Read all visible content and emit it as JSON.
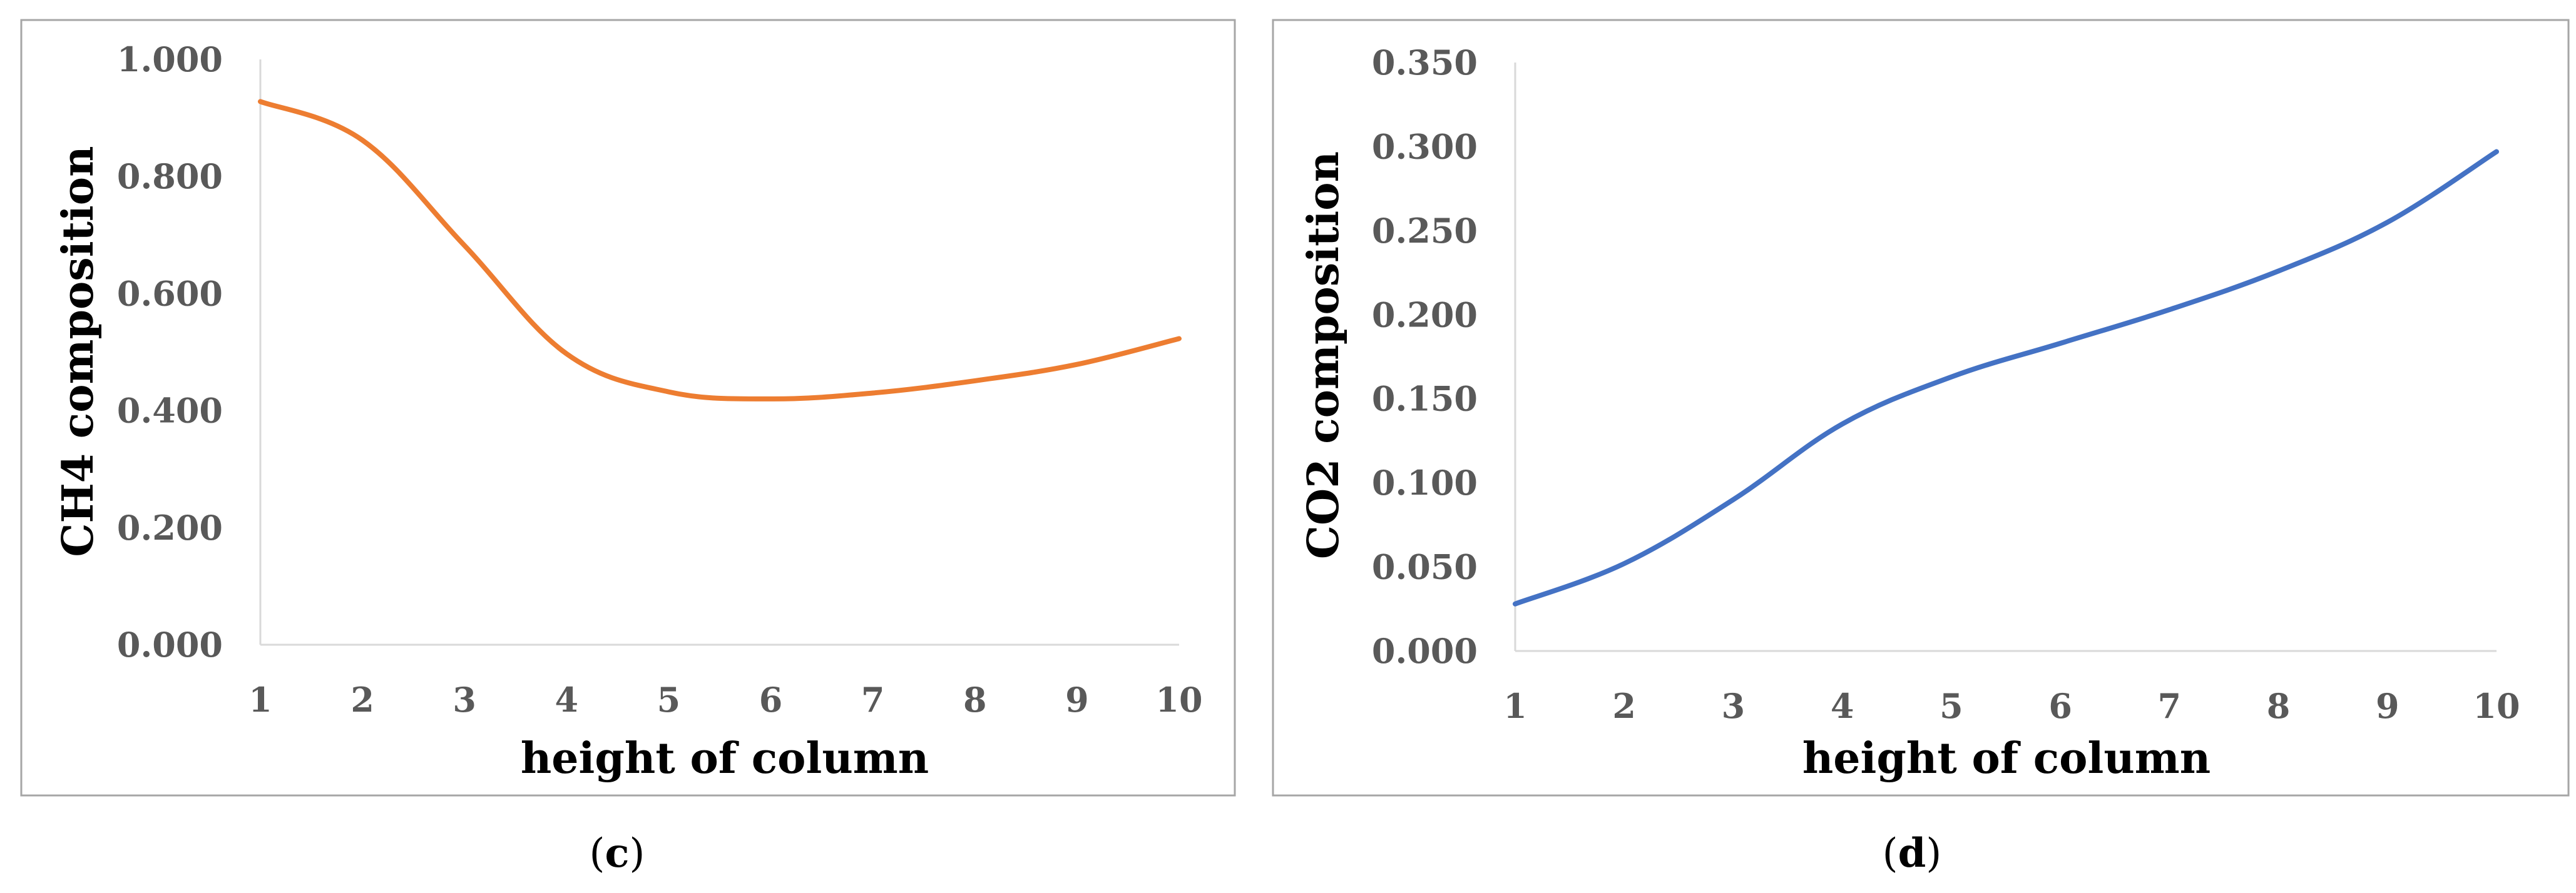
{
  "chart_data": [
    {
      "id": "c",
      "type": "line",
      "caption": "(c)",
      "caption_letter": "c",
      "xlabel": "height of column",
      "ylabel": "CH4 composition",
      "x": [
        1,
        2,
        3,
        4,
        5,
        6,
        7,
        8,
        9,
        10
      ],
      "categories": [
        "1",
        "2",
        "3",
        "4",
        "5",
        "6",
        "7",
        "8",
        "9",
        "10"
      ],
      "y_ticks": [
        "0.000",
        "0.200",
        "0.400",
        "0.600",
        "0.800",
        "1.000"
      ],
      "ylim": [
        0,
        1.0
      ],
      "grid": false,
      "legend": "none",
      "series": [
        {
          "name": "CH4 composition",
          "color": "#ed7d31",
          "values": [
            0.928,
            0.862,
            0.682,
            0.497,
            0.432,
            0.42,
            0.43,
            0.451,
            0.479,
            0.523
          ]
        }
      ]
    },
    {
      "id": "d",
      "type": "line",
      "caption": "(d)",
      "caption_letter": "d",
      "xlabel": "height of column",
      "ylabel": "CO2 composition",
      "x": [
        1,
        2,
        3,
        4,
        5,
        6,
        7,
        8,
        9,
        10
      ],
      "categories": [
        "1",
        "2",
        "3",
        "4",
        "5",
        "6",
        "7",
        "8",
        "9",
        "10"
      ],
      "y_ticks": [
        "0.000",
        "0.050",
        "0.100",
        "0.150",
        "0.200",
        "0.250",
        "0.300",
        "0.350"
      ],
      "ylim": [
        0,
        0.35
      ],
      "grid": false,
      "legend": "none",
      "series": [
        {
          "name": "CO2 composition",
          "color": "#4472c4",
          "values": [
            0.028,
            0.052,
            0.09,
            0.135,
            0.163,
            0.183,
            0.203,
            0.226,
            0.255,
            0.297
          ]
        }
      ]
    }
  ]
}
